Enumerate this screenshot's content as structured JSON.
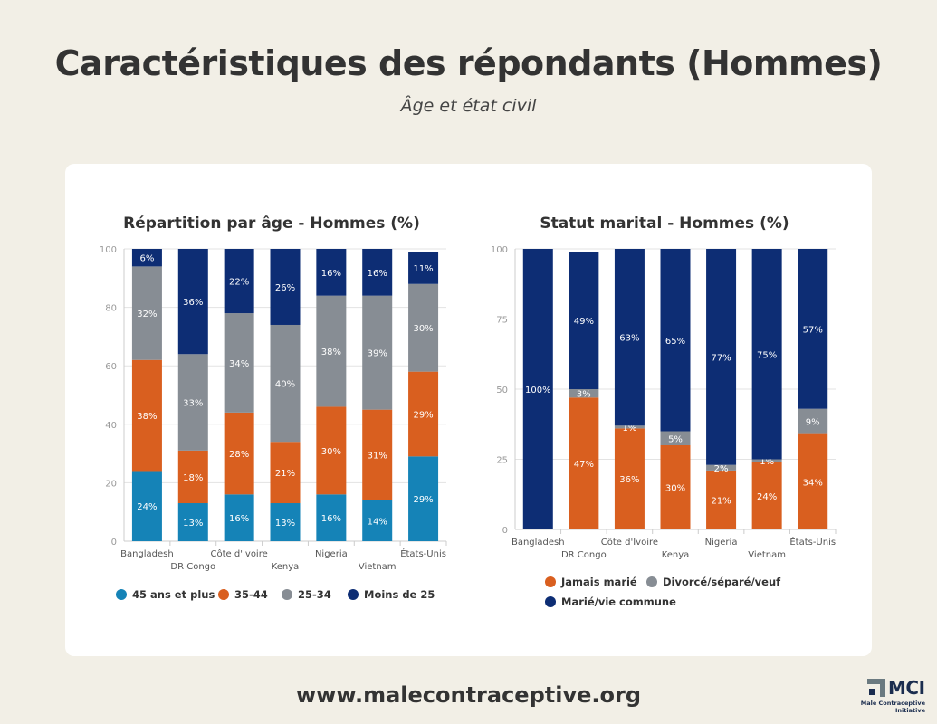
{
  "header": {
    "title": "Caractéristiques des répondants (Hommes)",
    "subtitle": "Âge et état civil"
  },
  "footer": {
    "url": "www.malecontraceptive.org",
    "logo_text": "MCI",
    "logo_tagline_1": "Male Contraceptive",
    "logo_tagline_2": "Initiative"
  },
  "colors": {
    "background": "#f2efe6",
    "card": "#ffffff"
  },
  "chart_data": [
    {
      "type": "bar",
      "stacked": true,
      "title": "Répartition par âge - Hommes (%)",
      "xlabel": "",
      "ylabel": "",
      "ylim": [
        0,
        100
      ],
      "yticks": [
        0,
        20,
        40,
        60,
        80,
        100
      ],
      "grid": true,
      "legend_position": "bottom",
      "categories": [
        "Bangladesh",
        "DR Congo",
        "Côte d'Ivoire",
        "Kenya",
        "Nigeria",
        "Vietnam",
        "États-Unis"
      ],
      "series": [
        {
          "name": "45 ans et plus",
          "color": "#1583b7",
          "values": [
            24,
            13,
            16,
            13,
            16,
            14,
            29
          ]
        },
        {
          "name": "35-44",
          "color": "#d95f1f",
          "values": [
            38,
            18,
            28,
            21,
            30,
            31,
            29
          ]
        },
        {
          "name": "25-34",
          "color": "#878d94",
          "values": [
            32,
            33,
            34,
            40,
            38,
            39,
            30
          ]
        },
        {
          "name": "Moins de 25",
          "color": "#0d2d74",
          "values": [
            6,
            36,
            22,
            26,
            16,
            16,
            11
          ]
        }
      ]
    },
    {
      "type": "bar",
      "stacked": true,
      "title": "Statut marital - Hommes (%)",
      "xlabel": "",
      "ylabel": "",
      "ylim": [
        0,
        100
      ],
      "yticks": [
        0,
        25,
        50,
        75,
        100
      ],
      "grid": true,
      "legend_position": "bottom",
      "categories": [
        "Bangladesh",
        "DR Congo",
        "Côte d'Ivoire",
        "Kenya",
        "Nigeria",
        "Vietnam",
        "États-Unis"
      ],
      "series": [
        {
          "name": "Jamais marié",
          "color": "#d95f1f",
          "values": [
            0,
            47,
            36,
            30,
            21,
            24,
            34
          ]
        },
        {
          "name": "Divorcé/séparé/veuf",
          "color": "#878d94",
          "values": [
            0,
            3,
            1,
            5,
            2,
            1,
            9
          ]
        },
        {
          "name": "Marié/vie commune",
          "color": "#0d2d74",
          "values": [
            100,
            49,
            63,
            65,
            77,
            75,
            57
          ]
        }
      ]
    }
  ]
}
